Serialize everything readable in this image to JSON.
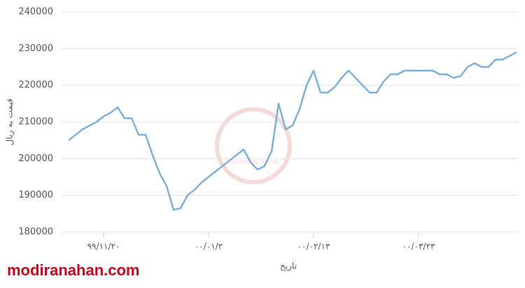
{
  "chart_data": {
    "type": "line",
    "x_label": "تاریخ",
    "y_label": "قیمت به ریال",
    "watermark": "modiranahan.com",
    "logo_text": "MODIRAN AHAN",
    "categories": [
      null,
      null,
      null,
      null,
      null,
      "۹۹/۱۱/۲۰",
      null,
      null,
      null,
      null,
      null,
      null,
      null,
      null,
      null,
      null,
      null,
      null,
      null,
      null,
      "۰۰/۰۱/۲",
      null,
      null,
      null,
      null,
      null,
      null,
      null,
      null,
      null,
      null,
      null,
      null,
      null,
      null,
      "۰۰/۰۲/۱۳",
      null,
      null,
      null,
      null,
      null,
      null,
      null,
      null,
      null,
      null,
      null,
      null,
      null,
      null,
      "۰۰/۰۳/۲۳",
      null,
      null,
      null,
      null,
      null,
      null,
      null,
      null,
      null,
      null,
      null,
      null,
      null,
      null
    ],
    "series": [
      {
        "color": "#7cb0dc",
        "values": [
          205000,
          206500,
          208000,
          209000,
          210000,
          211500,
          212500,
          214000,
          211000,
          211000,
          206500,
          206500,
          201000,
          196000,
          192500,
          186000,
          186500,
          190000,
          191500,
          193500,
          195000,
          196500,
          198000,
          199500,
          201000,
          202500,
          199000,
          197000,
          198000,
          202000,
          215000,
          208000,
          209000,
          213500,
          220000,
          224000,
          218000,
          218000,
          219500,
          222000,
          224000,
          222000,
          220000,
          218000,
          218000,
          221000,
          223000,
          223000,
          224000,
          224000,
          224000,
          224000,
          224000,
          223000,
          223000,
          222000,
          222500,
          225000,
          226000,
          225000,
          225000,
          227000,
          227000,
          228000,
          229000
        ]
      }
    ],
    "ylim": [
      180000,
      240000
    ],
    "yticks": [
      180000,
      190000,
      200000,
      210000,
      220000,
      230000,
      240000
    ],
    "grid": true
  }
}
